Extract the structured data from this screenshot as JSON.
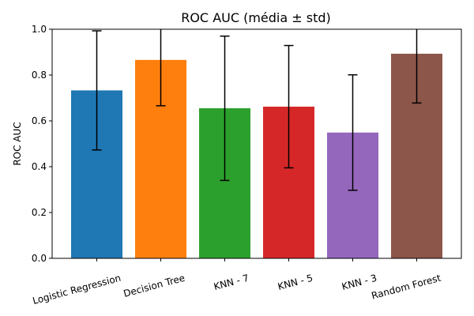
{
  "chart_data": {
    "type": "bar",
    "title": "ROC AUC (média ± std)",
    "xlabel": "",
    "ylabel": "ROC AUC",
    "ylim": [
      0,
      1.0
    ],
    "yticks": [
      "0.0",
      "0.2",
      "0.4",
      "0.6",
      "0.8",
      "1.0"
    ],
    "ytick_values": [
      0,
      0.2,
      0.4,
      0.6,
      0.8,
      1.0
    ],
    "grid": false,
    "legend": "none",
    "categories": [
      "Logistic Regression",
      "Decision Tree",
      "KNN - 7",
      "KNN - 5",
      "KNN - 3",
      "Random Forest"
    ],
    "values": [
      0.733,
      0.866,
      0.655,
      0.662,
      0.549,
      0.893
    ],
    "errors": [
      0.26,
      0.2,
      0.315,
      0.267,
      0.252,
      0.215
    ],
    "colors": [
      "#1f77b4",
      "#ff7f0e",
      "#2ca02c",
      "#d62728",
      "#9467bd",
      "#8c564b"
    ]
  }
}
